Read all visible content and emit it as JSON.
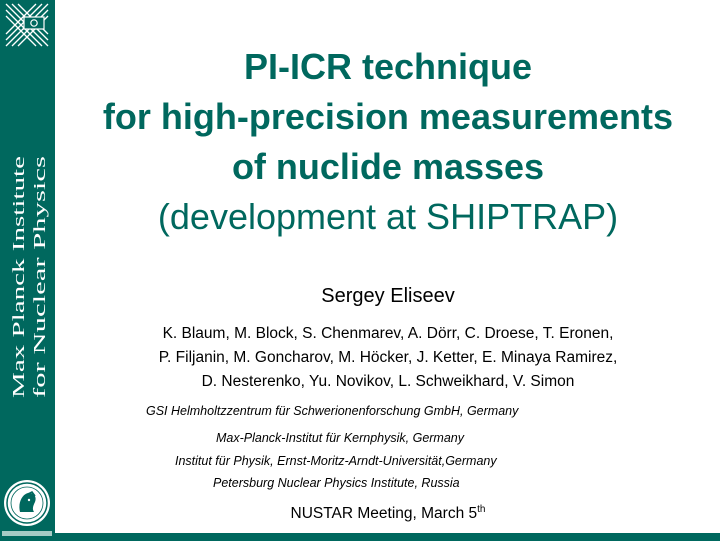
{
  "sidebar": {
    "institute_line1": "Max Planck Institute",
    "institute_line2": "for Nuclear Physics"
  },
  "title": {
    "line1": "PI-ICR technique",
    "line2": "for high-precision measurements",
    "line3": "of nuclide masses",
    "line4": "(development at SHIPTRAP)"
  },
  "author": "Sergey Eliseev",
  "coauthors": [
    "K. Blaum, M. Block, S. Chenmarev, A. Dörr, C. Droese, T. Eronen,",
    "P. Filjanin, M. Goncharov, M. Höcker, J. Ketter, E. Minaya Ramirez,",
    "D. Nesterenko, Yu. Novikov, L. Schweikhard, V. Simon"
  ],
  "affiliations": [
    "GSI Helmholtzzentrum für Schwerionenforschung GmbH, Germany",
    "Max-Planck-Institut für Kernphysik, Germany",
    "Institut für Physik, Ernst-Moritz-Arndt-Universität,Germany",
    "Petersburg Nuclear Physics Institute, Russia"
  ],
  "meeting": {
    "text": "NUSTAR Meeting, March 5",
    "suffix": "th"
  },
  "colors": {
    "brand": "#00685e",
    "title": "#00685e"
  }
}
